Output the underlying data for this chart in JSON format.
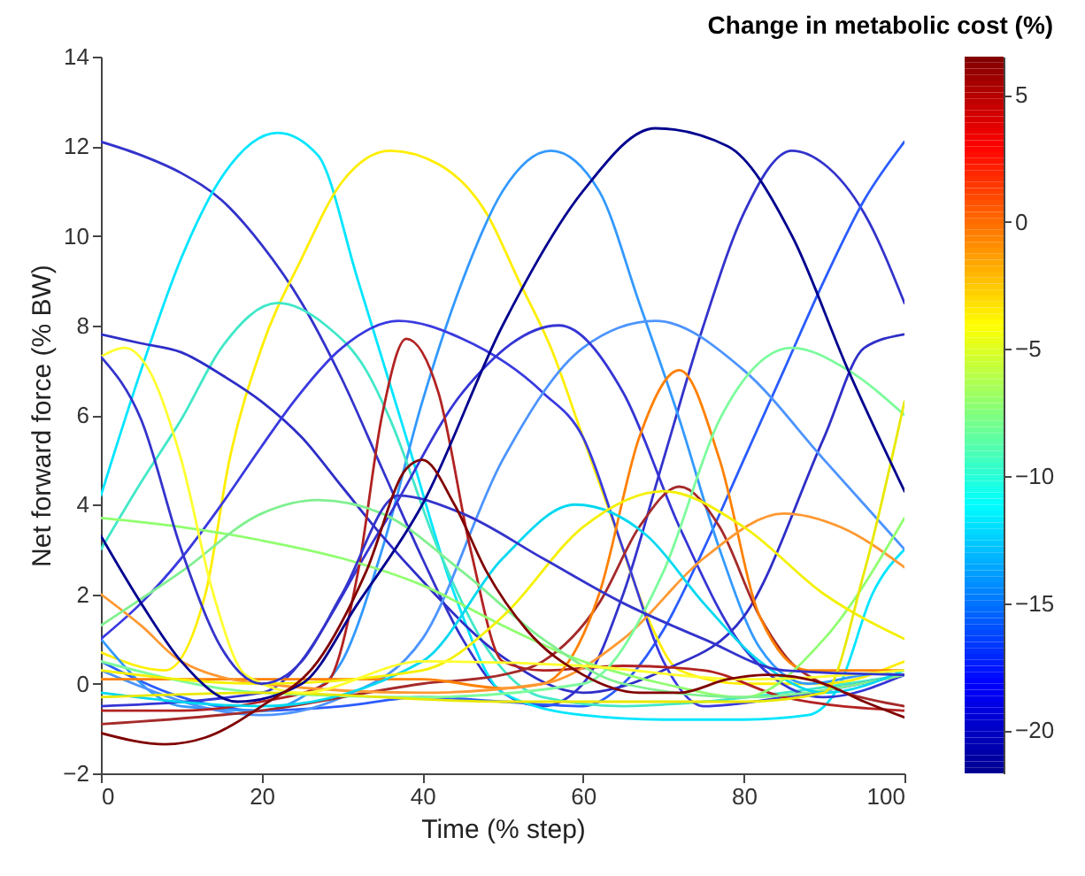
{
  "chart_data": {
    "type": "line",
    "xlabel": "Time (% step)",
    "ylabel": "Net forward force (% BW)",
    "clabel": "Change in metabolic cost (%)",
    "clim": [
      -21.7,
      6.5
    ],
    "cticks": [
      -20,
      -15,
      -10,
      -5,
      0,
      5
    ],
    "xlim": [
      0,
      100
    ],
    "xticks": [
      0,
      20,
      40,
      60,
      80,
      100
    ],
    "ylim": [
      -2,
      14
    ],
    "yticks": [
      -2,
      0,
      2,
      4,
      6,
      8,
      10,
      12,
      14
    ],
    "grid": false,
    "legend": false,
    "marker": "none",
    "line_style": "solid",
    "series": [
      {
        "color": "#3333cc",
        "x": [
          0,
          5,
          10,
          15,
          20,
          25,
          30,
          35,
          40,
          45,
          50,
          55,
          60,
          65,
          70,
          75,
          80,
          86,
          90,
          95,
          100
        ],
        "values": [
          12.1,
          11.8,
          11.4,
          10.8,
          9.8,
          8.5,
          6.8,
          4.8,
          2.8,
          1,
          -0.2,
          -0.5,
          0,
          2,
          5,
          8,
          10.5,
          11.9,
          11.6,
          10.5,
          8.5
        ]
      },
      {
        "color": "#2a5cff",
        "x": [
          0,
          10,
          20,
          30,
          40,
          50,
          60,
          65,
          70,
          75,
          80,
          85,
          90,
          95,
          100
        ],
        "values": [
          0.5,
          -0.3,
          -0.6,
          -0.5,
          -0.3,
          -0.4,
          -0.5,
          0,
          1.2,
          3,
          5,
          7,
          9,
          10.8,
          12.1
        ]
      },
      {
        "color": "#00e5ff",
        "x": [
          0,
          5,
          10,
          15,
          22,
          27,
          32,
          38,
          44,
          50,
          60,
          70,
          80,
          88,
          92,
          96,
          100
        ],
        "values": [
          4.2,
          7,
          9.5,
          11.3,
          12.3,
          11.8,
          9,
          5.5,
          2,
          -0.2,
          -0.7,
          -0.8,
          -0.8,
          -0.7,
          0,
          2,
          3
        ]
      },
      {
        "color": "#ffee00",
        "x": [
          0,
          8,
          13,
          16,
          20,
          25,
          30,
          36,
          42,
          48,
          52,
          56,
          60,
          64,
          68,
          72,
          80,
          90,
          100
        ],
        "values": [
          0.7,
          0.3,
          2,
          5,
          7.5,
          9.5,
          11.2,
          11.9,
          11.6,
          10.5,
          9,
          7.5,
          5.5,
          3.5,
          1.5,
          0.3,
          0,
          0,
          0.5
        ]
      },
      {
        "color": "#3399ff",
        "x": [
          0,
          10,
          20,
          25,
          30,
          35,
          40,
          45,
          50,
          56,
          62,
          67,
          72,
          77,
          82,
          88,
          95,
          100
        ],
        "values": [
          1,
          -0.5,
          -0.6,
          -0.3,
          0.5,
          3,
          6.3,
          9,
          11,
          11.9,
          11,
          8.5,
          5.9,
          3,
          0.8,
          0,
          0.2,
          0.3
        ]
      },
      {
        "color": "#40e8c8",
        "x": [
          0,
          5,
          10,
          15,
          22,
          28,
          33,
          36,
          42,
          48,
          55,
          65,
          75,
          85,
          100
        ],
        "values": [
          3,
          4.5,
          5.9,
          7.5,
          8.5,
          8,
          7,
          5.9,
          3,
          0.8,
          -0.3,
          -0.5,
          -0.4,
          -0.2,
          0.2
        ]
      },
      {
        "color": "#2e2ec8",
        "x": [
          0,
          5,
          10,
          15,
          20,
          25,
          30,
          35,
          40,
          50,
          60,
          70,
          80,
          90,
          95,
          100
        ],
        "values": [
          7.8,
          7.6,
          7.4,
          6.9,
          6.3,
          5.5,
          4.4,
          3.3,
          2.3,
          0.6,
          -0.2,
          0.3,
          1.5,
          5.5,
          7.5,
          7.8
        ]
      },
      {
        "color": "#3a3ae0",
        "x": [
          0,
          5,
          10,
          15,
          20,
          24,
          30,
          37,
          45,
          55,
          60,
          65,
          70,
          75,
          85,
          100
        ],
        "values": [
          1,
          1.8,
          2.8,
          4,
          5.3,
          6.3,
          7.5,
          8.1,
          7.7,
          6.5,
          5.5,
          3,
          0.5,
          -0.5,
          -0.3,
          0.2
        ]
      },
      {
        "color": "#4d94ff",
        "x": [
          0,
          20,
          30,
          40,
          50,
          60,
          69,
          80,
          90,
          100
        ],
        "values": [
          0.3,
          -0.7,
          -0.3,
          1,
          5,
          7.5,
          8.1,
          7,
          5,
          3
        ]
      },
      {
        "color": "#3535d5",
        "x": [
          0,
          20,
          35,
          45,
          57,
          65,
          72,
          80,
          90,
          100
        ],
        "values": [
          -0.5,
          -0.2,
          3.5,
          6.5,
          8,
          6.5,
          3.5,
          0.8,
          -0.3,
          0.2
        ]
      },
      {
        "color": "#b22222",
        "x": [
          0,
          10,
          20,
          28,
          32,
          35,
          38,
          42,
          46,
          50,
          55,
          65,
          75,
          85,
          100
        ],
        "values": [
          -0.6,
          -0.6,
          -0.4,
          0,
          2.5,
          6,
          7.7,
          6.5,
          3,
          0.5,
          0.3,
          0.4,
          0.3,
          -0.3,
          -0.6
        ]
      },
      {
        "color": "#a52a2a",
        "x": [
          0,
          20,
          40,
          50,
          55,
          62,
          67,
          72,
          77,
          82,
          87,
          100
        ],
        "values": [
          -0.9,
          -0.6,
          0,
          0.2,
          0.5,
          1.8,
          3.5,
          4.4,
          3.5,
          1.5,
          0.3,
          -0.5
        ]
      },
      {
        "color": "#ff8000",
        "x": [
          0,
          20,
          40,
          50,
          55,
          62,
          67,
          72,
          77,
          82,
          88,
          100
        ],
        "values": [
          0.1,
          0.1,
          0.1,
          -0.1,
          0,
          2,
          5.5,
          7,
          5,
          1.5,
          0.3,
          0.3
        ]
      },
      {
        "color": "#ff9933",
        "x": [
          0,
          5,
          10,
          20,
          40,
          55,
          65,
          75,
          85,
          92,
          100
        ],
        "values": [
          2,
          1.3,
          0.5,
          0,
          -0.2,
          0,
          1,
          2.8,
          3.8,
          3.5,
          2.6
        ]
      },
      {
        "color": "#90ff70",
        "x": [
          0,
          10,
          20,
          30,
          40,
          50,
          60,
          70,
          80,
          90,
          100
        ],
        "values": [
          3.7,
          3.5,
          3.2,
          2.8,
          2.2,
          1.3,
          0.5,
          0,
          -0.3,
          1,
          3.7
        ]
      },
      {
        "color": "#80f090",
        "x": [
          0,
          10,
          20,
          27,
          35,
          45,
          55,
          65,
          80,
          100
        ],
        "values": [
          1.3,
          2.5,
          3.8,
          4.1,
          3.8,
          2.5,
          1,
          0,
          -0.3,
          0.2
        ]
      },
      {
        "color": "#7cfc9c",
        "x": [
          0,
          20,
          40,
          60,
          70,
          77,
          86,
          93,
          100
        ],
        "values": [
          0.5,
          -0.2,
          -0.3,
          0,
          2.5,
          5.9,
          7.5,
          7,
          6
        ]
      },
      {
        "color": "#00d8f0",
        "x": [
          0,
          20,
          40,
          50,
          59,
          68,
          75,
          82,
          90,
          100
        ],
        "values": [
          -0.2,
          -0.5,
          0.5,
          2.8,
          4,
          3.3,
          1.8,
          0.5,
          -0.2,
          0.3
        ]
      },
      {
        "color": "#f5f000",
        "x": [
          0,
          20,
          40,
          50,
          60,
          70,
          80,
          90,
          100
        ],
        "values": [
          0.3,
          0,
          0.3,
          1.5,
          3.5,
          4.3,
          3.5,
          2,
          1
        ]
      },
      {
        "color": "#e8e800",
        "x": [
          0,
          20,
          50,
          80,
          90,
          95,
          100
        ],
        "values": [
          -0.3,
          -0.2,
          -0.4,
          -0.4,
          -0.2,
          2.5,
          6.3
        ]
      },
      {
        "color": "#ffff30",
        "x": [
          0,
          3,
          6,
          10,
          14,
          18,
          25,
          40,
          60,
          80,
          100
        ],
        "values": [
          7.3,
          7.5,
          7,
          5,
          2,
          0.2,
          -0.2,
          0.5,
          0.4,
          0.1,
          0.3
        ]
      },
      {
        "color": "#3434cc",
        "x": [
          0,
          5,
          10,
          15,
          20,
          25,
          30,
          37,
          45,
          55,
          65,
          75,
          85,
          100
        ],
        "values": [
          7.3,
          5.9,
          3,
          0.8,
          0,
          0.5,
          2,
          4.2,
          3.8,
          2.8,
          1.8,
          1,
          0.3,
          0.2
        ]
      },
      {
        "color": "#00008f",
        "x": [
          0,
          5,
          10,
          17,
          25,
          32,
          40,
          50,
          60,
          69,
          78,
          86,
          93,
          100
        ],
        "values": [
          3.3,
          1.8,
          0.5,
          -0.4,
          0,
          1.8,
          4,
          8,
          11,
          12.4,
          12,
          10,
          7,
          4.3
        ]
      },
      {
        "color": "#800000",
        "x": [
          0,
          8,
          13,
          20,
          27,
          33,
          38,
          40,
          44,
          48,
          53,
          60,
          67,
          72,
          78,
          83,
          90,
          95,
          100
        ],
        "values": [
          -1.1,
          -1.35,
          -1.2,
          -0.5,
          0.5,
          2.5,
          4.8,
          5,
          4,
          2.5,
          1.2,
          0.2,
          -0.2,
          -0.2,
          0.1,
          0.2,
          0,
          -0.4,
          -0.75
        ]
      }
    ]
  }
}
